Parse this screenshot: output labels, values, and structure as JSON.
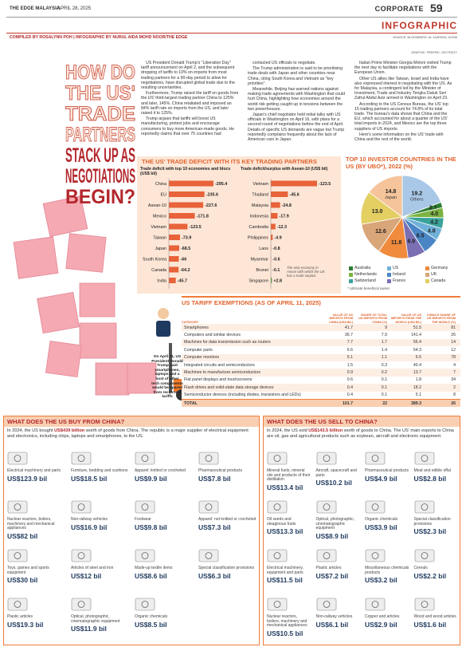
{
  "header": {
    "publication": "THE EDGE MALAYSIA",
    "date": "APRIL 28, 2025",
    "section": "CORPORATE",
    "page": "59",
    "label": "INFOGRAPHIC",
    "credits": "COMPILED BY ROSALYNN POH | INFOGRAPHIC BY NURUL AIDA MOHD NOOR/THE EDGE",
    "source": "SOURCE: BLOOMBERG, AL JAZEERA, DOSM",
    "graphic": "GRAPHIC: FREEPIK, VECTEEZY"
  },
  "title": {
    "top": [
      "HOW DO",
      "THE US'",
      "TRADE",
      "PARTNERS"
    ],
    "bottom": [
      "STACK UP AS",
      "NEGOTIATIONS",
      "BEGIN?"
    ]
  },
  "intro": {
    "columns": [
      [
        "US President Donald Trump's \"Liberation Day\" tariff announcement on April 2, and the subsequent dropping of tariffs to 10% on imports from most trading partners for a 90-day period to allow for negotiations, have disrupted global trade due to the resulting uncertainties.",
        "Furthermore, Trump raised the tariff on goods from the US' third-largest trading partner China to 125% and later, 145%. China retaliated and imposed an 84% tariff rate on imports from the US, and later raised it to 125%.",
        "Trump argues that tariffs will boost US manufacturing, protect jobs and encourage consumers to buy more American-made goods. He reportedly claims that over 75 countries had"
      ],
      [
        "contacted US officials to negotiate.",
        "The Trump administration is said to be prioritising trade deals with Japan and other countries near China, citing South Korea and Vietnam as \"key priorities\".",
        "Meanwhile, Beijing has warned nations against making trade agreements with Washington that could hurt China, highlighting how economies around the world risk getting caught up in tensions between the two powerhouses.",
        "Japan's chief negotiator held initial talks with US officials in Washington on April 16, with plans for a second round of negotiations before the end of April. Details of specific US demands are vague but Trump reportedly complains frequently about the lack of American cars in Japan."
      ],
      [
        "Italian Prime Minister Giorgia Meloni visited Trump the next day to facilitate negotiations with the European Union.",
        "Other US allies like Taiwan, Israel and India have also expressed interest in negotiating with the US. As for Malaysia, a contingent led by the Minister of Investment, Trade and Industry Tengku Datuk Seri Zafrul Abdul Aziz arrived in Washington on April 23.",
        "According to the US Census Bureau, the US' top 15 trading partners account for 74.8% of its total trade. The bureau's data shows that China and the EU, which accounted for about a quarter of the US' total imports in 2024, and Mexico are the top three suppliers of US imports.",
        "Here's some information on the US' trade with China and the rest of the world."
      ]
    ]
  },
  "deficit": {
    "title": "THE US' TRADE DEFICIT WITH ITS KEY TRADING PARTNERS",
    "colors": {
      "deficit": "#e8623a",
      "surplus": "#5a9e3a"
    },
    "charts": [
      {
        "type": "bar",
        "title": "Trade deficit with top 10 economies and blocs (US$ bil)",
        "categories": [
          "China",
          "EU",
          "Asean-10",
          "Mexico",
          "Vietnam",
          "Taiwan",
          "Japan",
          "South Korea",
          "Canada",
          "India"
        ],
        "values": [
          -295.4,
          -235.6,
          -227.6,
          -171.8,
          -123.5,
          -73.9,
          -68.5,
          -66,
          -64.2,
          -45.7
        ],
        "value_labels": [
          "-295.4",
          "-235.6",
          "-227.6",
          "-171.8",
          "-123.5",
          "-73.9",
          "-68.5",
          "-66",
          "-64.2",
          "-45.7"
        ]
      },
      {
        "type": "bar",
        "title": "Trade deficit/surplus with Asean-10 (US$ bil)",
        "categories": [
          "Vietnam",
          "Thailand",
          "Malaysia",
          "Indonesia",
          "Cambodia",
          "Philippines",
          "Laos",
          "Myanmar",
          "Brunei",
          "Singapore"
        ],
        "values": [
          -123.5,
          -45.6,
          -24.8,
          -17.9,
          -12.3,
          -4.9,
          -0.8,
          -0.6,
          -0.1,
          2.8
        ],
        "value_labels": [
          "-123.5",
          "-45.6",
          "-24.8",
          "-17.9",
          "-12.3",
          "-4.9",
          "-0.8",
          "-0.6",
          "-0.1",
          "+2.8"
        ],
        "note": "The only economy in Asean with which the US has a trade surplus"
      }
    ]
  },
  "investors": {
    "type": "pie",
    "title": "TOP 10 INVESTOR COUNTRIES IN THE US (BY UBO*), 2022 (%)",
    "slices": [
      {
        "name": "Others",
        "value": 19.2,
        "label": "19.2",
        "color": "#a9c8e8"
      },
      {
        "name": "Australia",
        "value": 2.1,
        "label": "2.1",
        "color": "#2e7d32"
      },
      {
        "name": "Netherlands",
        "value": 4.0,
        "label": "4.0",
        "color": "#7cb342"
      },
      {
        "name": "Switzerland",
        "value": 4.2,
        "label": "4.2",
        "color": "#3aa39b"
      },
      {
        "name": "US",
        "value": 4.8,
        "label": "4.8",
        "color": "#6fb1d8"
      },
      {
        "name": "Ireland",
        "value": 6.5,
        "label": "6.5",
        "color": "#4a86c5"
      },
      {
        "name": "France",
        "value": 6.9,
        "label": "6.9",
        "color": "#7b6fb3"
      },
      {
        "name": "Germany",
        "value": 11.8,
        "label": "11.8",
        "color": "#f08a3c"
      },
      {
        "name": "UK",
        "value": 12.6,
        "label": "12.6",
        "color": "#d9a679"
      },
      {
        "name": "Canada",
        "value": 13.0,
        "label": "13.0",
        "color": "#e3cf62"
      },
      {
        "name": "Japan",
        "value": 14.8,
        "label": "14.8",
        "color": "#f6c49a"
      }
    ],
    "footnote": "* Ultimate beneficial owner"
  },
  "tariff": {
    "title": "US TARIFF EXEMPTIONS (AS OF APRIL 11, 2025)",
    "columns": [
      "CATEGORY",
      "VALUE OF US IMPORTS FROM CHINA (US$ BIL)",
      "SHARE OF TOTAL US IMPORTS FROM CHINA (%)",
      "VALUE OF US IMPORTS FROM THE WORLD (US$ BIL)",
      "CHINA'S SHARE OF US IMPORTS FROM THE WORLD (%)"
    ],
    "rows": [
      [
        "Smartphones",
        "41.7",
        "9",
        "51.5",
        "81"
      ],
      [
        "Computers and similar devices",
        "36.7",
        "7.9",
        "141.4",
        "26"
      ],
      [
        "Machines for data transmission such as routers",
        "7.7",
        "1.7",
        "56.4",
        "14"
      ],
      [
        "Computer parts",
        "6.6",
        "1.4",
        "54.3",
        "12"
      ],
      [
        "Computer monitors",
        "5.1",
        "1.1",
        "6.5",
        "78"
      ],
      [
        "Integrated circuits and semiconductors",
        "1.5",
        "0.3",
        "40.4",
        "4"
      ],
      [
        "Machines to manufacture semiconductors",
        "0.9",
        "0.2",
        "13.7",
        "7"
      ],
      [
        "Flat panel displays and touchscreens",
        "0.6",
        "0.1",
        "1.8",
        "34"
      ],
      [
        "Flash drives and solid-state data storage devices",
        "0.4",
        "0.1",
        "18.2",
        "2"
      ],
      [
        "Semiconductor devices (including diodes, transistors and LEDs)",
        "0.4",
        "0.1",
        "5.1",
        "8"
      ]
    ],
    "total": [
      "TOTAL",
      "101.7",
      "22",
      "389.3",
      "26"
    ],
    "note": "On April 11, US President Donald Trump said smartphones, laptops and a host of other tech components would be spared from reciprocal tariffs"
  },
  "buy": {
    "title": "WHAT DOES THE US BUY FROM CHINA?",
    "summary": [
      "In 2024, the US bought ",
      "US$439 billion",
      " worth of goods from China. The republic is a major supplier of electrical equipment and electronics, including chips, laptops and smartphones, to the US."
    ],
    "items": [
      {
        "label": "Electrical machinery and parts",
        "value": "US$123.9 bil"
      },
      {
        "label": "Nuclear reactors, boilers, machinery and mechanical appliances",
        "value": "US$82 bil"
      },
      {
        "label": "Toys, games and sports equipment",
        "value": "US$30 bil"
      },
      {
        "label": "Plastic articles",
        "value": "US$19.3 bil"
      },
      {
        "label": "Furniture, bedding and cushions",
        "value": "US$18.5 bil"
      },
      {
        "label": "Non-railway vehicles",
        "value": "US$16.9 bil"
      },
      {
        "label": "Articles of steel and iron",
        "value": "US$12 bil"
      },
      {
        "label": "Optical, photographic, cinematographic equipment",
        "value": "US$11.9 bil"
      },
      {
        "label": "Apparel: knitted or crocheted",
        "value": "US$9.9 bil"
      },
      {
        "label": "Footwear",
        "value": "US$9.8 bil"
      },
      {
        "label": "Made-up textile items",
        "value": "US$8.6 bil"
      },
      {
        "label": "Organic chemicals",
        "value": "US$8.5 bil"
      },
      {
        "label": "Pharmaceutical products",
        "value": "US$7.8 bil"
      },
      {
        "label": "Apparel: not knitted or crocheted",
        "value": "US$7.3 bil"
      },
      {
        "label": "Special classification provisions",
        "value": "US$6.3 bil"
      }
    ]
  },
  "sell": {
    "title": "WHAT DOES THE US SELL TO CHINA?",
    "summary": [
      "In 2024, the US sold ",
      "US$143.5 billion",
      " worth of goods to China. The US' main exports to China are oil, gas and agricultural products such as soybean, aircraft and electronic equipment."
    ],
    "items": [
      {
        "label": "Mineral fuels, mineral oils and products of their distillation",
        "value": "US$13.4 bil"
      },
      {
        "label": "Oil seeds and oleaginous fruits",
        "value": "US$13.3 bil"
      },
      {
        "label": "Electrical machinery, equipment and parts",
        "value": "US$11.5 bil"
      },
      {
        "label": "Nuclear reactors, boilers, machinery and mechanical appliances",
        "value": "US$10.5 bil"
      },
      {
        "label": "Aircraft, spacecraft and parts",
        "value": "US$10.2 bil"
      },
      {
        "label": "Optical, photographic, cinematographic equipment",
        "value": "US$8.9 bil"
      },
      {
        "label": "Plastic articles",
        "value": "US$7.2 bil"
      },
      {
        "label": "Non-railway vehicles",
        "value": "US$6.1 bil"
      },
      {
        "label": "Pharmaceutical products",
        "value": "US$4.9 bil"
      },
      {
        "label": "Organic chemicals",
        "value": "US$3.9 bil"
      },
      {
        "label": "Miscellaneous chemicals products",
        "value": "US$3.2 bil"
      },
      {
        "label": "Copper and articles",
        "value": "US$2.9 bil"
      },
      {
        "label": "Meat and edible offal",
        "value": "US$2.8 bil"
      },
      {
        "label": "Special classification provisions",
        "value": "US$2.3 bil"
      },
      {
        "label": "Cereals",
        "value": "US$2.2 bil"
      },
      {
        "label": "Wood and wood articles",
        "value": "US$1.6 bil"
      }
    ]
  }
}
